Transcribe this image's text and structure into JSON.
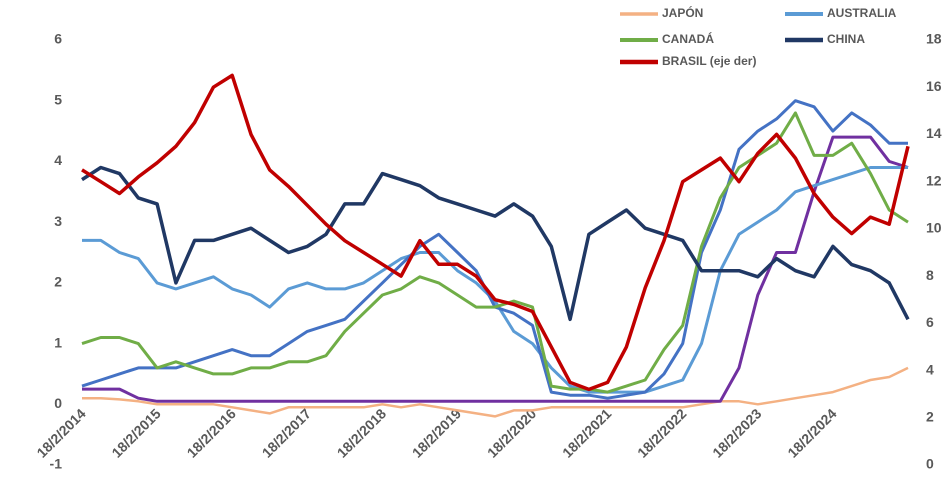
{
  "chart_data": {
    "type": "line",
    "categories": [
      "18/2/2014",
      null,
      null,
      null,
      "18/2/2015",
      null,
      null,
      null,
      "18/2/2016",
      null,
      null,
      null,
      "18/2/2017",
      null,
      null,
      null,
      "18/2/2018",
      null,
      null,
      null,
      "18/2/2019",
      null,
      null,
      null,
      "18/2/2020",
      null,
      null,
      null,
      "18/2/2021",
      null,
      null,
      null,
      "18/2/2022",
      null,
      null,
      null,
      "18/2/2023",
      null,
      null,
      null,
      "18/2/2024",
      null,
      null,
      null,
      null
    ],
    "ylim": [
      -1,
      6
    ],
    "yticks": [
      -1,
      0,
      1,
      2,
      3,
      4,
      5,
      6
    ],
    "y2lim": [
      0,
      18
    ],
    "y2ticks": [
      0,
      2,
      4,
      6,
      8,
      10,
      12,
      14,
      16,
      18
    ],
    "grid": false,
    "series": [
      {
        "name": "JAPÓN",
        "color": "#f4b183",
        "width": 2.5,
        "values": [
          0.1,
          0.1,
          0.08,
          0.05,
          0,
          0,
          0,
          0,
          -0.05,
          -0.1,
          -0.15,
          -0.05,
          -0.05,
          -0.05,
          -0.05,
          -0.05,
          0,
          -0.05,
          0,
          -0.05,
          -0.1,
          -0.15,
          -0.2,
          -0.1,
          -0.1,
          -0.05,
          -0.05,
          -0.05,
          -0.05,
          -0.05,
          -0.05,
          -0.05,
          -0.05,
          0,
          0.05,
          0.05,
          0,
          0.05,
          0.1,
          0.15,
          0.2,
          0.3,
          0.4,
          0.45,
          0.6
        ]
      },
      {
        "color": "#7030a0",
        "width": 3,
        "values": [
          0.25,
          0.25,
          0.25,
          0.1,
          0.05,
          0.05,
          0.05,
          0.05,
          0.05,
          0.05,
          0.05,
          0.05,
          0.05,
          0.05,
          0.05,
          0.05,
          0.05,
          0.05,
          0.05,
          0.05,
          0.05,
          0.05,
          0.05,
          0.05,
          0.05,
          0.05,
          0.05,
          0.05,
          0.05,
          0.05,
          0.05,
          0.05,
          0.05,
          0.05,
          0.05,
          0.6,
          1.8,
          2.5,
          2.5,
          3.5,
          4.4,
          4.4,
          4.4,
          4.0,
          3.9
        ]
      },
      {
        "name": "AUSTRALIA",
        "color": "#5b9bd5",
        "width": 3,
        "values": [
          2.7,
          2.7,
          2.5,
          2.4,
          2.0,
          1.9,
          2.0,
          2.1,
          1.9,
          1.8,
          1.6,
          1.9,
          2.0,
          1.9,
          1.9,
          2.0,
          2.2,
          2.4,
          2.5,
          2.5,
          2.2,
          2.0,
          1.7,
          1.2,
          1.0,
          0.6,
          0.3,
          0.2,
          0.2,
          0.2,
          0.2,
          0.3,
          0.4,
          1.0,
          2.2,
          2.8,
          3.0,
          3.2,
          3.5,
          3.6,
          3.7,
          3.8,
          3.9,
          3.9,
          3.9
        ]
      },
      {
        "color": "#4472c4",
        "width": 3,
        "values": [
          0.3,
          0.4,
          0.5,
          0.6,
          0.6,
          0.6,
          0.7,
          0.8,
          0.9,
          0.8,
          0.8,
          1.0,
          1.2,
          1.3,
          1.4,
          1.7,
          2.0,
          2.3,
          2.6,
          2.8,
          2.5,
          2.2,
          1.6,
          1.5,
          1.3,
          0.2,
          0.15,
          0.15,
          0.1,
          0.15,
          0.2,
          0.5,
          1.0,
          2.5,
          3.2,
          4.2,
          4.5,
          4.7,
          5.0,
          4.9,
          4.5,
          4.8,
          4.6,
          4.3,
          4.3
        ]
      },
      {
        "name": "CANADÁ",
        "color": "#70ad47",
        "width": 3,
        "values": [
          1.0,
          1.1,
          1.1,
          1.0,
          0.6,
          0.7,
          0.6,
          0.5,
          0.5,
          0.6,
          0.6,
          0.7,
          0.7,
          0.8,
          1.2,
          1.5,
          1.8,
          1.9,
          2.1,
          2.0,
          1.8,
          1.6,
          1.6,
          1.7,
          1.6,
          0.3,
          0.25,
          0.25,
          0.2,
          0.3,
          0.4,
          0.9,
          1.3,
          2.6,
          3.4,
          3.9,
          4.1,
          4.3,
          4.8,
          4.1,
          4.1,
          4.3,
          3.8,
          3.2,
          3.0
        ]
      },
      {
        "name": "CHINA",
        "color": "#203864",
        "width": 3.5,
        "values": [
          3.7,
          3.9,
          3.8,
          3.4,
          3.3,
          2.0,
          2.7,
          2.7,
          2.8,
          2.9,
          2.7,
          2.5,
          2.6,
          2.8,
          3.3,
          3.3,
          3.8,
          3.7,
          3.6,
          3.4,
          3.3,
          3.2,
          3.1,
          3.3,
          3.1,
          2.6,
          1.4,
          2.8,
          3.0,
          3.2,
          2.9,
          2.8,
          2.7,
          2.2,
          2.2,
          2.2,
          2.1,
          2.4,
          2.2,
          2.1,
          2.6,
          2.3,
          2.2,
          2.0,
          1.4
        ]
      },
      {
        "name": "BRASIL (eje der)",
        "color": "#c00000",
        "width": 3.5,
        "axis": "y2",
        "values": [
          12.5,
          12.0,
          11.5,
          12.2,
          12.8,
          13.5,
          14.5,
          16.0,
          16.5,
          14.0,
          12.5,
          11.8,
          11.0,
          10.2,
          9.5,
          9.0,
          8.5,
          8.0,
          9.5,
          8.5,
          8.5,
          8.0,
          7.0,
          6.8,
          6.5,
          5.0,
          3.5,
          3.2,
          3.5,
          5.0,
          7.5,
          9.5,
          12.0,
          12.5,
          13.0,
          12.0,
          13.2,
          14.0,
          13.0,
          11.5,
          10.5,
          9.8,
          10.5,
          10.2,
          13.5
        ]
      }
    ]
  }
}
